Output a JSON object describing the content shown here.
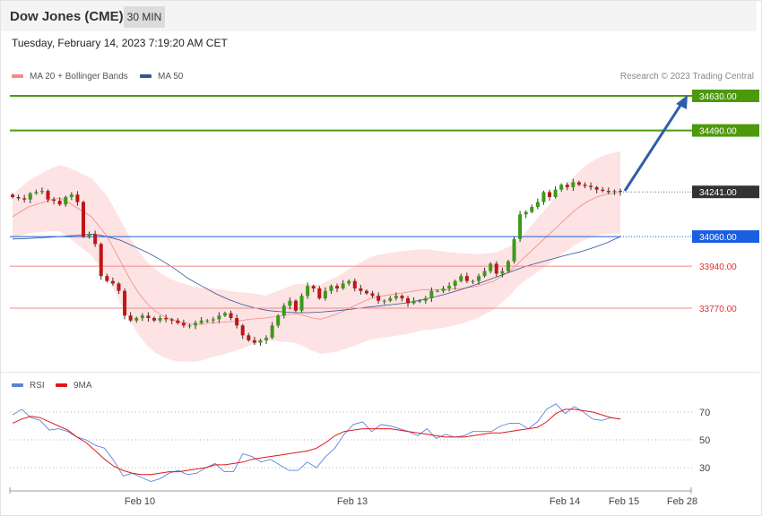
{
  "header": {
    "title": "Dow Jones (CME)",
    "timeframe": "30 MIN",
    "date": "Tuesday, February 14, 2023 7:19:20 AM CET"
  },
  "legend": {
    "main": [
      {
        "label": "MA 20 + Bollinger Bands",
        "color": "#f28b86"
      },
      {
        "label": "MA 50",
        "color": "#2e5597"
      }
    ],
    "rsi": [
      {
        "label": "RSI",
        "color": "#5b84d9"
      },
      {
        "label": "9MA",
        "color": "#e01818"
      }
    ],
    "credit": "Research © 2023 Trading Central"
  },
  "chart_data": {
    "type": "candlestick",
    "x_labels": [
      "Feb 10",
      "Feb 13",
      "Feb 14",
      "Feb 15",
      "Feb 28"
    ],
    "ylim": [
      33550,
      34700
    ],
    "last_price": 34241.0,
    "levels": [
      {
        "value": 34630.0,
        "label": "34630.00",
        "role": "target",
        "color": "#4c9a0c"
      },
      {
        "value": 34490.0,
        "label": "34490.00",
        "role": "target",
        "color": "#4c9a0c"
      },
      {
        "value": 34241.0,
        "label": "34241.00",
        "role": "last",
        "color": "#333333"
      },
      {
        "value": 34060.0,
        "label": "34060.00",
        "role": "pivot",
        "color": "#1a5fe0"
      },
      {
        "value": 33940.0,
        "label": "33940.00",
        "role": "support",
        "color": "#e03030"
      },
      {
        "value": 33770.0,
        "label": "33770.00",
        "role": "support",
        "color": "#e03030"
      }
    ],
    "close": [
      34220,
      34215,
      34210,
      34235,
      34240,
      34245,
      34210,
      34205,
      34190,
      34220,
      34230,
      34200,
      34060,
      34070,
      34030,
      33900,
      33880,
      33870,
      33840,
      33740,
      33720,
      33730,
      33740,
      33730,
      33720,
      33730,
      33725,
      33720,
      33710,
      33700,
      33700,
      33710,
      33720,
      33720,
      33725,
      33740,
      33750,
      33730,
      33700,
      33660,
      33640,
      33630,
      33640,
      33650,
      33700,
      33740,
      33780,
      33800,
      33760,
      33820,
      33860,
      33850,
      33810,
      33840,
      33860,
      33850,
      33870,
      33880,
      33850,
      33840,
      33830,
      33820,
      33800,
      33800,
      33810,
      33820,
      33810,
      33790,
      33800,
      33800,
      33810,
      33840,
      33840,
      33850,
      33860,
      33880,
      33900,
      33880,
      33880,
      33900,
      33920,
      33950,
      33910,
      33920,
      33960,
      34050,
      34150,
      34160,
      34180,
      34200,
      34240,
      34220,
      34250,
      34270,
      34260,
      34280,
      34270,
      34265,
      34260,
      34250,
      34245,
      34240,
      34245,
      34241
    ],
    "ma20": [
      34140,
      34160,
      34180,
      34190,
      34200,
      34210,
      34215,
      34200,
      34180,
      34160,
      34140,
      34100,
      34060,
      34000,
      33940,
      33880,
      33830,
      33790,
      33760,
      33740,
      33725,
      33715,
      33710,
      33705,
      33705,
      33710,
      33712,
      33714,
      33716,
      33720,
      33725,
      33728,
      33730,
      33735,
      33740,
      33745,
      33748,
      33740,
      33730,
      33725,
      33735,
      33745,
      33760,
      33775,
      33790,
      33805,
      33815,
      33820,
      33825,
      33830,
      33835,
      33840,
      33845,
      33845,
      33845,
      33845,
      33848,
      33850,
      33855,
      33860,
      33870,
      33880,
      33900,
      33920,
      33950,
      33980,
      34010,
      34040,
      34070,
      34100,
      34130,
      34160,
      34185,
      34205,
      34220,
      34230,
      34235,
      34240
    ],
    "ma50": [
      34050,
      34052,
      34055,
      34058,
      34062,
      34066,
      34070,
      34060,
      34045,
      34020,
      33995,
      33965,
      33930,
      33890,
      33860,
      33830,
      33805,
      33785,
      33770,
      33760,
      33755,
      33752,
      33752,
      33755,
      33760,
      33765,
      33772,
      33778,
      33784,
      33790,
      33800,
      33812,
      33826,
      33842,
      33860,
      33880,
      33900,
      33920,
      33940,
      33955,
      33970,
      33985,
      33998,
      34015,
      34035,
      34060
    ]
  },
  "rsi": {
    "levels": [
      "70",
      "50",
      "30"
    ],
    "rsi": [
      68,
      72,
      66,
      64,
      57,
      58,
      56,
      52,
      50,
      46,
      44,
      35,
      24,
      26,
      23,
      20,
      22,
      26,
      28,
      25,
      26,
      30,
      33,
      27,
      27,
      40,
      38,
      34,
      36,
      32,
      28,
      28,
      34,
      30,
      38,
      44,
      54,
      61,
      63,
      56,
      61,
      60,
      58,
      56,
      53,
      58,
      51,
      54,
      52,
      53,
      56,
      56,
      56,
      60,
      62,
      62,
      58,
      63,
      72,
      76,
      69,
      74,
      70,
      65,
      64,
      66,
      65
    ],
    "ma9": [
      62,
      65,
      67,
      66,
      63,
      60,
      57,
      52,
      48,
      42,
      36,
      31,
      28,
      26,
      25,
      25,
      26,
      27,
      27,
      28,
      29,
      30,
      32,
      32,
      33,
      34,
      36,
      37,
      38,
      39,
      40,
      41,
      42,
      44,
      48,
      53,
      56,
      57,
      58,
      58,
      58,
      58,
      57,
      56,
      55,
      54,
      53,
      52,
      52,
      52,
      53,
      54,
      55,
      55,
      56,
      57,
      58,
      59,
      63,
      69,
      72,
      72,
      71,
      70,
      68,
      66,
      65
    ]
  }
}
